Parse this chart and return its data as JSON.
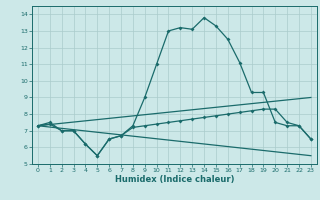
{
  "xlabel": "Humidex (Indice chaleur)",
  "background_color": "#cce8e8",
  "grid_color": "#aacccc",
  "line_color": "#1a6b6b",
  "xlim": [
    -0.5,
    23.5
  ],
  "ylim": [
    5,
    14.5
  ],
  "xtick_labels": [
    "0",
    "1",
    "2",
    "3",
    "4",
    "5",
    "6",
    "7",
    "8",
    "9",
    "10",
    "11",
    "12",
    "13",
    "14",
    "15",
    "16",
    "17",
    "18",
    "19",
    "20",
    "21",
    "22",
    "23"
  ],
  "xtick_vals": [
    0,
    1,
    2,
    3,
    4,
    5,
    6,
    7,
    8,
    9,
    10,
    11,
    12,
    13,
    14,
    15,
    16,
    17,
    18,
    19,
    20,
    21,
    22,
    23
  ],
  "ytick_vals": [
    5,
    6,
    7,
    8,
    9,
    10,
    11,
    12,
    13,
    14
  ],
  "line1_x": [
    0,
    1,
    2,
    3,
    4,
    5,
    6,
    7,
    8,
    9,
    10,
    11,
    12,
    13,
    14,
    15,
    16,
    17,
    18,
    19,
    20,
    21,
    22,
    23
  ],
  "line1_y": [
    7.3,
    7.5,
    7.0,
    7.0,
    6.2,
    5.5,
    6.5,
    6.7,
    7.3,
    9.0,
    11.0,
    13.0,
    13.2,
    13.1,
    13.8,
    13.3,
    12.5,
    11.1,
    9.3,
    9.3,
    7.5,
    7.3,
    7.3,
    6.5
  ],
  "line2_x": [
    0,
    1,
    2,
    3,
    4,
    5,
    6,
    7,
    8,
    9,
    10,
    11,
    12,
    13,
    14,
    15,
    16,
    17,
    18,
    19,
    20,
    21,
    22,
    23
  ],
  "line2_y": [
    7.3,
    7.4,
    7.0,
    7.0,
    6.2,
    5.5,
    6.5,
    6.7,
    7.2,
    7.3,
    7.4,
    7.5,
    7.6,
    7.7,
    7.8,
    7.9,
    8.0,
    8.1,
    8.2,
    8.3,
    8.3,
    7.5,
    7.3,
    6.5
  ],
  "line3_x": [
    0,
    23
  ],
  "line3_y": [
    7.3,
    9.0
  ],
  "line4_x": [
    0,
    23
  ],
  "line4_y": [
    7.3,
    5.5
  ]
}
